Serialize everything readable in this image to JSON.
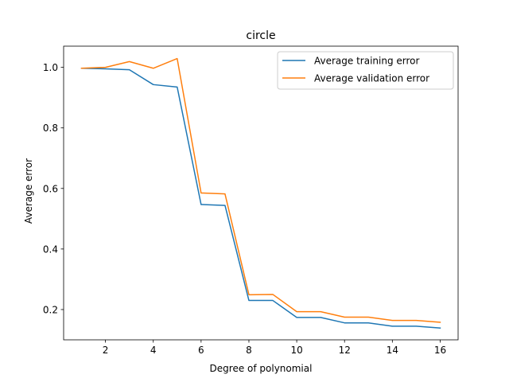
{
  "chart_data": {
    "type": "line",
    "title": "circle",
    "xlabel": "Degree of polynomial",
    "ylabel": "Average error",
    "xlim": [
      0.25,
      16.75
    ],
    "ylim": [
      0.1,
      1.07
    ],
    "x_ticks": [
      2,
      4,
      6,
      8,
      10,
      12,
      14,
      16
    ],
    "y_ticks": [
      0.2,
      0.4,
      0.6,
      0.8,
      1.0
    ],
    "y_tick_labels": [
      "0.2",
      "0.4",
      "0.6",
      "0.8",
      "1.0"
    ],
    "grid": false,
    "legend_position": "upper right",
    "x": [
      1,
      2,
      3,
      4,
      5,
      6,
      7,
      8,
      9,
      10,
      11,
      12,
      13,
      14,
      15,
      16
    ],
    "series": [
      {
        "name": "Average training error",
        "color": "#1f77b4",
        "values": [
          0.997,
          0.995,
          0.992,
          0.943,
          0.935,
          0.547,
          0.544,
          0.23,
          0.23,
          0.174,
          0.174,
          0.156,
          0.156,
          0.145,
          0.145,
          0.139
        ]
      },
      {
        "name": "Average validation error",
        "color": "#ff7f0e",
        "values": [
          0.997,
          1.0,
          1.019,
          0.997,
          1.029,
          0.585,
          0.582,
          0.249,
          0.25,
          0.193,
          0.193,
          0.175,
          0.175,
          0.164,
          0.164,
          0.158
        ]
      }
    ]
  }
}
